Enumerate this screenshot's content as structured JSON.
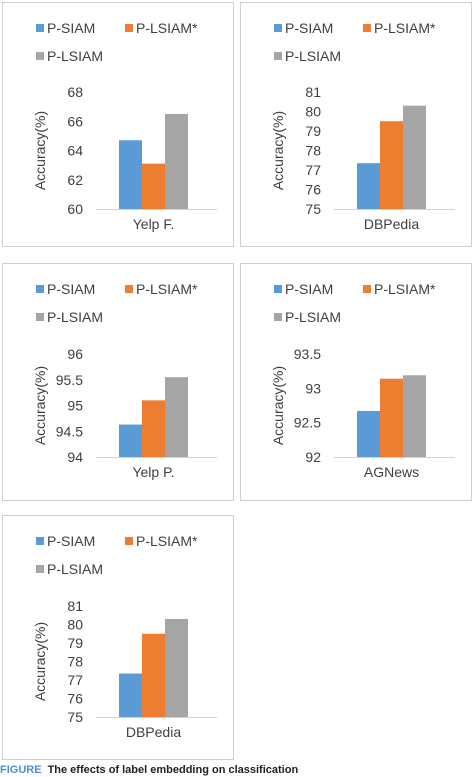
{
  "legend": {
    "series": [
      {
        "name": "P-SIAM",
        "color": "#5B9BD5"
      },
      {
        "name": "P-LSIAM*",
        "color": "#ED7D31"
      },
      {
        "name": "P-LSIAM",
        "color": "#A5A5A5"
      }
    ]
  },
  "chart_data": [
    {
      "type": "bar",
      "title": "",
      "xlabel": "Yelp F.",
      "ylabel": "Accuracy(%)",
      "ylim": [
        60,
        68
      ],
      "yticks": [
        60,
        62,
        64,
        66,
        68
      ],
      "grid": false,
      "legend_position": "top",
      "series": [
        {
          "name": "P-SIAM",
          "values": [
            64.7
          ]
        },
        {
          "name": "P-LSIAM*",
          "values": [
            63.1
          ]
        },
        {
          "name": "P-LSIAM",
          "values": [
            66.5
          ]
        }
      ]
    },
    {
      "type": "bar",
      "title": "",
      "xlabel": "DBPedia",
      "ylabel": "Accuracy(%)",
      "ylim": [
        75,
        81
      ],
      "yticks": [
        75,
        76,
        77,
        78,
        79,
        80,
        81
      ],
      "grid": false,
      "legend_position": "top",
      "series": [
        {
          "name": "P-SIAM",
          "values": [
            77.35
          ]
        },
        {
          "name": "P-LSIAM*",
          "values": [
            79.5
          ]
        },
        {
          "name": "P-LSIAM",
          "values": [
            80.3
          ]
        }
      ]
    },
    {
      "type": "bar",
      "title": "",
      "xlabel": "Yelp P.",
      "ylabel": "Accuracy(%)",
      "ylim": [
        94,
        96
      ],
      "yticks": [
        94,
        94.5,
        95,
        95.5,
        96
      ],
      "grid": false,
      "legend_position": "top",
      "series": [
        {
          "name": "P-SIAM",
          "values": [
            94.63
          ]
        },
        {
          "name": "P-LSIAM*",
          "values": [
            95.1
          ]
        },
        {
          "name": "P-LSIAM",
          "values": [
            95.55
          ]
        }
      ]
    },
    {
      "type": "bar",
      "title": "",
      "xlabel": "AGNews",
      "ylabel": "Accuracy(%)",
      "ylim": [
        92,
        93.5
      ],
      "yticks": [
        92,
        92.5,
        93,
        93.5
      ],
      "grid": false,
      "legend_position": "top",
      "series": [
        {
          "name": "P-SIAM",
          "values": [
            92.67
          ]
        },
        {
          "name": "P-LSIAM*",
          "values": [
            93.14
          ]
        },
        {
          "name": "P-LSIAM",
          "values": [
            93.19
          ]
        }
      ]
    },
    {
      "type": "bar",
      "title": "",
      "xlabel": "DBPedia",
      "ylabel": "Accuracy(%)",
      "ylim": [
        75,
        81
      ],
      "yticks": [
        75,
        76,
        77,
        78,
        79,
        80,
        81
      ],
      "grid": false,
      "legend_position": "top",
      "series": [
        {
          "name": "P-SIAM",
          "values": [
            77.35
          ]
        },
        {
          "name": "P-LSIAM*",
          "values": [
            79.5
          ]
        },
        {
          "name": "P-LSIAM",
          "values": [
            80.3
          ]
        }
      ]
    }
  ],
  "caption": {
    "tag": "FIGURE",
    "text": "The effects of label embedding on classification"
  }
}
